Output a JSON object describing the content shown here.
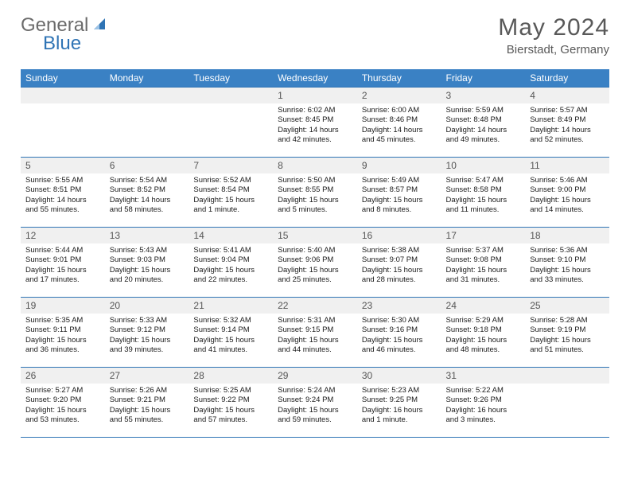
{
  "logo": {
    "general": "General",
    "blue": "Blue"
  },
  "title": "May 2024",
  "location": "Bierstadt, Germany",
  "colors": {
    "header_bg": "#3a81c4",
    "header_text": "#ffffff",
    "border": "#2f74b5",
    "daynum_bg": "#f0f0f0",
    "daynum_text": "#555555",
    "body_text": "#1a1a1a",
    "logo_gray": "#6b6b6b",
    "logo_blue": "#2f74b5",
    "title_color": "#595959"
  },
  "day_headers": [
    "Sunday",
    "Monday",
    "Tuesday",
    "Wednesday",
    "Thursday",
    "Friday",
    "Saturday"
  ],
  "weeks": [
    [
      {
        "n": "",
        "lines": []
      },
      {
        "n": "",
        "lines": []
      },
      {
        "n": "",
        "lines": []
      },
      {
        "n": "1",
        "lines": [
          "Sunrise: 6:02 AM",
          "Sunset: 8:45 PM",
          "Daylight: 14 hours",
          "and 42 minutes."
        ]
      },
      {
        "n": "2",
        "lines": [
          "Sunrise: 6:00 AM",
          "Sunset: 8:46 PM",
          "Daylight: 14 hours",
          "and 45 minutes."
        ]
      },
      {
        "n": "3",
        "lines": [
          "Sunrise: 5:59 AM",
          "Sunset: 8:48 PM",
          "Daylight: 14 hours",
          "and 49 minutes."
        ]
      },
      {
        "n": "4",
        "lines": [
          "Sunrise: 5:57 AM",
          "Sunset: 8:49 PM",
          "Daylight: 14 hours",
          "and 52 minutes."
        ]
      }
    ],
    [
      {
        "n": "5",
        "lines": [
          "Sunrise: 5:55 AM",
          "Sunset: 8:51 PM",
          "Daylight: 14 hours",
          "and 55 minutes."
        ]
      },
      {
        "n": "6",
        "lines": [
          "Sunrise: 5:54 AM",
          "Sunset: 8:52 PM",
          "Daylight: 14 hours",
          "and 58 minutes."
        ]
      },
      {
        "n": "7",
        "lines": [
          "Sunrise: 5:52 AM",
          "Sunset: 8:54 PM",
          "Daylight: 15 hours",
          "and 1 minute."
        ]
      },
      {
        "n": "8",
        "lines": [
          "Sunrise: 5:50 AM",
          "Sunset: 8:55 PM",
          "Daylight: 15 hours",
          "and 5 minutes."
        ]
      },
      {
        "n": "9",
        "lines": [
          "Sunrise: 5:49 AM",
          "Sunset: 8:57 PM",
          "Daylight: 15 hours",
          "and 8 minutes."
        ]
      },
      {
        "n": "10",
        "lines": [
          "Sunrise: 5:47 AM",
          "Sunset: 8:58 PM",
          "Daylight: 15 hours",
          "and 11 minutes."
        ]
      },
      {
        "n": "11",
        "lines": [
          "Sunrise: 5:46 AM",
          "Sunset: 9:00 PM",
          "Daylight: 15 hours",
          "and 14 minutes."
        ]
      }
    ],
    [
      {
        "n": "12",
        "lines": [
          "Sunrise: 5:44 AM",
          "Sunset: 9:01 PM",
          "Daylight: 15 hours",
          "and 17 minutes."
        ]
      },
      {
        "n": "13",
        "lines": [
          "Sunrise: 5:43 AM",
          "Sunset: 9:03 PM",
          "Daylight: 15 hours",
          "and 20 minutes."
        ]
      },
      {
        "n": "14",
        "lines": [
          "Sunrise: 5:41 AM",
          "Sunset: 9:04 PM",
          "Daylight: 15 hours",
          "and 22 minutes."
        ]
      },
      {
        "n": "15",
        "lines": [
          "Sunrise: 5:40 AM",
          "Sunset: 9:06 PM",
          "Daylight: 15 hours",
          "and 25 minutes."
        ]
      },
      {
        "n": "16",
        "lines": [
          "Sunrise: 5:38 AM",
          "Sunset: 9:07 PM",
          "Daylight: 15 hours",
          "and 28 minutes."
        ]
      },
      {
        "n": "17",
        "lines": [
          "Sunrise: 5:37 AM",
          "Sunset: 9:08 PM",
          "Daylight: 15 hours",
          "and 31 minutes."
        ]
      },
      {
        "n": "18",
        "lines": [
          "Sunrise: 5:36 AM",
          "Sunset: 9:10 PM",
          "Daylight: 15 hours",
          "and 33 minutes."
        ]
      }
    ],
    [
      {
        "n": "19",
        "lines": [
          "Sunrise: 5:35 AM",
          "Sunset: 9:11 PM",
          "Daylight: 15 hours",
          "and 36 minutes."
        ]
      },
      {
        "n": "20",
        "lines": [
          "Sunrise: 5:33 AM",
          "Sunset: 9:12 PM",
          "Daylight: 15 hours",
          "and 39 minutes."
        ]
      },
      {
        "n": "21",
        "lines": [
          "Sunrise: 5:32 AM",
          "Sunset: 9:14 PM",
          "Daylight: 15 hours",
          "and 41 minutes."
        ]
      },
      {
        "n": "22",
        "lines": [
          "Sunrise: 5:31 AM",
          "Sunset: 9:15 PM",
          "Daylight: 15 hours",
          "and 44 minutes."
        ]
      },
      {
        "n": "23",
        "lines": [
          "Sunrise: 5:30 AM",
          "Sunset: 9:16 PM",
          "Daylight: 15 hours",
          "and 46 minutes."
        ]
      },
      {
        "n": "24",
        "lines": [
          "Sunrise: 5:29 AM",
          "Sunset: 9:18 PM",
          "Daylight: 15 hours",
          "and 48 minutes."
        ]
      },
      {
        "n": "25",
        "lines": [
          "Sunrise: 5:28 AM",
          "Sunset: 9:19 PM",
          "Daylight: 15 hours",
          "and 51 minutes."
        ]
      }
    ],
    [
      {
        "n": "26",
        "lines": [
          "Sunrise: 5:27 AM",
          "Sunset: 9:20 PM",
          "Daylight: 15 hours",
          "and 53 minutes."
        ]
      },
      {
        "n": "27",
        "lines": [
          "Sunrise: 5:26 AM",
          "Sunset: 9:21 PM",
          "Daylight: 15 hours",
          "and 55 minutes."
        ]
      },
      {
        "n": "28",
        "lines": [
          "Sunrise: 5:25 AM",
          "Sunset: 9:22 PM",
          "Daylight: 15 hours",
          "and 57 minutes."
        ]
      },
      {
        "n": "29",
        "lines": [
          "Sunrise: 5:24 AM",
          "Sunset: 9:24 PM",
          "Daylight: 15 hours",
          "and 59 minutes."
        ]
      },
      {
        "n": "30",
        "lines": [
          "Sunrise: 5:23 AM",
          "Sunset: 9:25 PM",
          "Daylight: 16 hours",
          "and 1 minute."
        ]
      },
      {
        "n": "31",
        "lines": [
          "Sunrise: 5:22 AM",
          "Sunset: 9:26 PM",
          "Daylight: 16 hours",
          "and 3 minutes."
        ]
      },
      {
        "n": "",
        "lines": []
      }
    ]
  ]
}
